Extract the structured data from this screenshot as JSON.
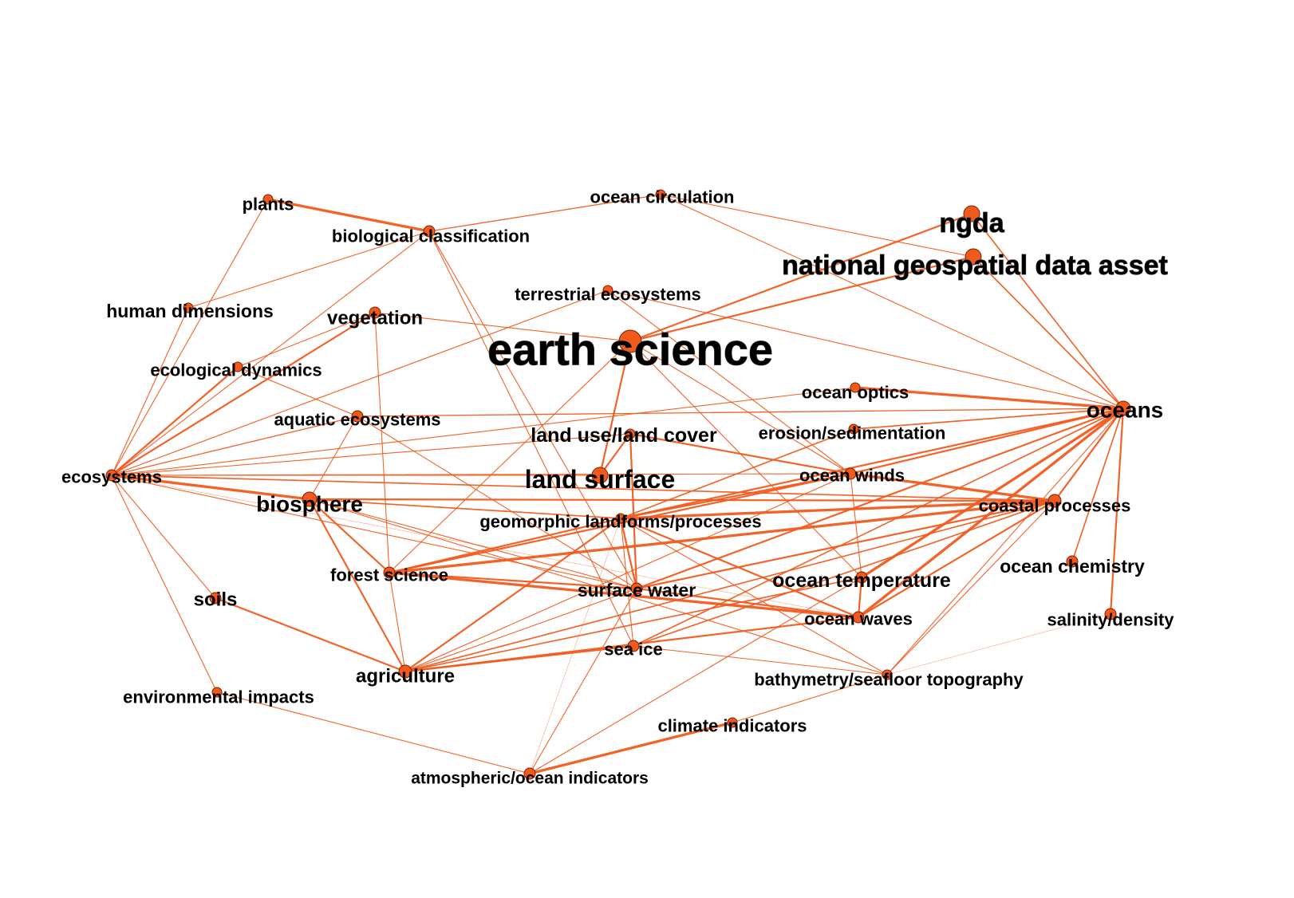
{
  "network": {
    "accent_color": "#f25a1c",
    "node_stroke_color": "#7a1e00",
    "nodes": [
      {
        "id": "earth_science",
        "label": "earth science"
      },
      {
        "id": "ngda",
        "label": "ngda"
      },
      {
        "id": "ngda_full",
        "label": "national geospatial data asset"
      },
      {
        "id": "oceans",
        "label": "oceans"
      },
      {
        "id": "land_surface",
        "label": "land surface"
      },
      {
        "id": "biosphere",
        "label": "biosphere"
      },
      {
        "id": "plants",
        "label": "plants"
      },
      {
        "id": "ocean_circulation",
        "label": "ocean circulation"
      },
      {
        "id": "bio_class",
        "label": "biological classification"
      },
      {
        "id": "terr_eco",
        "label": "terrestrial ecosystems"
      },
      {
        "id": "human_dim",
        "label": "human dimensions"
      },
      {
        "id": "vegetation",
        "label": "vegetation"
      },
      {
        "id": "eco_dyn",
        "label": "ecological dynamics"
      },
      {
        "id": "ocean_optics",
        "label": "ocean optics"
      },
      {
        "id": "aquatic_eco",
        "label": "aquatic ecosystems"
      },
      {
        "id": "land_use",
        "label": "land use/land cover"
      },
      {
        "id": "erosion",
        "label": "erosion/sedimentation"
      },
      {
        "id": "ecosystems",
        "label": "ecosystems"
      },
      {
        "id": "ocean_winds",
        "label": "ocean winds"
      },
      {
        "id": "coastal",
        "label": "coastal processes"
      },
      {
        "id": "geomorphic",
        "label": "geomorphic landforms/processes"
      },
      {
        "id": "forest",
        "label": "forest science"
      },
      {
        "id": "ocean_chem",
        "label": "ocean chemistry"
      },
      {
        "id": "surface_water",
        "label": "surface water"
      },
      {
        "id": "ocean_temp",
        "label": "ocean temperature"
      },
      {
        "id": "soils",
        "label": "soils"
      },
      {
        "id": "ocean_waves",
        "label": "ocean waves"
      },
      {
        "id": "salinity",
        "label": "salinity/density"
      },
      {
        "id": "sea_ice",
        "label": "sea ice"
      },
      {
        "id": "agriculture",
        "label": "agriculture"
      },
      {
        "id": "bathymetry",
        "label": "bathymetry/seafloor topography"
      },
      {
        "id": "env_impacts",
        "label": "environmental impacts"
      },
      {
        "id": "climate_ind",
        "label": "climate indicators"
      },
      {
        "id": "atm_ocean_ind",
        "label": "atmospheric/ocean indicators"
      }
    ],
    "edges": [
      [
        "plants",
        "bio_class",
        3
      ],
      [
        "plants",
        "ecosystems",
        1
      ],
      [
        "bio_class",
        "ocean_circulation",
        1.2
      ],
      [
        "bio_class",
        "ecosystems",
        1
      ],
      [
        "bio_class",
        "human_dim",
        1
      ],
      [
        "bio_class",
        "surface_water",
        1
      ],
      [
        "bio_class",
        "sea_ice",
        1
      ],
      [
        "ocean_circulation",
        "ngda_full",
        1
      ],
      [
        "ocean_circulation",
        "oceans",
        1
      ],
      [
        "ngda",
        "earth_science",
        2
      ],
      [
        "ngda_full",
        "earth_science",
        2
      ],
      [
        "ngda",
        "oceans",
        1.5
      ],
      [
        "ngda_full",
        "oceans",
        1.5
      ],
      [
        "earth_science",
        "land_surface",
        2
      ],
      [
        "earth_science",
        "vegetation",
        1
      ],
      [
        "earth_science",
        "ocean_temp",
        1
      ],
      [
        "earth_science",
        "forest",
        1
      ],
      [
        "earth_science",
        "ocean_winds",
        1
      ],
      [
        "terr_eco",
        "oceans",
        1
      ],
      [
        "terr_eco",
        "ecosystems",
        1
      ],
      [
        "terr_eco",
        "ocean_winds",
        1
      ],
      [
        "human_dim",
        "ecosystems",
        1
      ],
      [
        "vegetation",
        "ecosystems",
        2
      ],
      [
        "vegetation",
        "forest",
        1
      ],
      [
        "vegetation",
        "eco_dyn",
        1
      ],
      [
        "eco_dyn",
        "ecosystems",
        2
      ],
      [
        "aquatic_eco",
        "oceans",
        1.2
      ],
      [
        "aquatic_eco",
        "ecosystems",
        1.2
      ],
      [
        "aquatic_eco",
        "biosphere",
        1
      ],
      [
        "aquatic_eco",
        "surface_water",
        1
      ],
      [
        "aquatic_eco",
        "eco_dyn",
        1
      ],
      [
        "ocean_optics",
        "oceans",
        3
      ],
      [
        "ocean_optics",
        "ecosystems",
        1
      ],
      [
        "land_use",
        "surface_water",
        2
      ],
      [
        "land_use",
        "ocean_winds",
        2
      ],
      [
        "land_use",
        "land_surface",
        2
      ],
      [
        "land_use",
        "ecosystems",
        1
      ],
      [
        "erosion",
        "oceans",
        1.5
      ],
      [
        "erosion",
        "geomorphic",
        1.5
      ],
      [
        "ecosystems",
        "land_surface",
        1
      ],
      [
        "ecosystems",
        "biosphere",
        3
      ],
      [
        "ecosystems",
        "coastal",
        1.5
      ],
      [
        "ecosystems",
        "ocean_winds",
        1
      ],
      [
        "ecosystems",
        "soils",
        1
      ],
      [
        "ecosystems",
        "env_impacts",
        1
      ],
      [
        "ecosystems",
        "surface_water",
        1
      ],
      [
        "ecosystems",
        "ocean_waves",
        0.5
      ],
      [
        "biosphere",
        "agriculture",
        2
      ],
      [
        "biosphere",
        "forest",
        2
      ],
      [
        "biosphere",
        "coastal",
        2
      ],
      [
        "biosphere",
        "geomorphic",
        1.5
      ],
      [
        "biosphere",
        "surface_water",
        1
      ],
      [
        "ocean_winds",
        "oceans",
        2
      ],
      [
        "ocean_winds",
        "coastal",
        3
      ],
      [
        "ocean_winds",
        "forest",
        2
      ],
      [
        "ocean_winds",
        "geomorphic",
        2
      ],
      [
        "ocean_winds",
        "ocean_temp",
        1
      ],
      [
        "ocean_winds",
        "agriculture",
        1
      ],
      [
        "coastal",
        "oceans",
        2
      ],
      [
        "coastal",
        "geomorphic",
        3
      ],
      [
        "coastal",
        "forest",
        3
      ],
      [
        "coastal",
        "surface_water",
        2
      ],
      [
        "coastal",
        "ocean_waves",
        2
      ],
      [
        "coastal",
        "sea_ice",
        1.5
      ],
      [
        "coastal",
        "agriculture",
        1.5
      ],
      [
        "coastal",
        "bathymetry",
        1
      ],
      [
        "oceans",
        "ocean_chem",
        1.5
      ],
      [
        "oceans",
        "salinity",
        2
      ],
      [
        "oceans",
        "ocean_temp",
        3
      ],
      [
        "oceans",
        "ocean_waves",
        3
      ],
      [
        "oceans",
        "surface_water",
        2
      ],
      [
        "oceans",
        "geomorphic",
        2
      ],
      [
        "oceans",
        "sea_ice",
        1.5
      ],
      [
        "oceans",
        "bathymetry",
        1
      ],
      [
        "geomorphic",
        "surface_water",
        2
      ],
      [
        "geomorphic",
        "agriculture",
        2
      ],
      [
        "geomorphic",
        "ocean_waves",
        2
      ],
      [
        "geomorphic",
        "sea_ice",
        1
      ],
      [
        "geomorphic",
        "forest",
        2
      ],
      [
        "geomorphic",
        "atm_ocean_ind",
        0.5
      ],
      [
        "geomorphic",
        "bathymetry",
        1
      ],
      [
        "forest",
        "ocean_waves",
        3
      ],
      [
        "forest",
        "surface_water",
        2
      ],
      [
        "forest",
        "agriculture",
        1
      ],
      [
        "surface_water",
        "ocean_waves",
        2
      ],
      [
        "surface_water",
        "agriculture",
        1
      ],
      [
        "ocean_temp",
        "agriculture",
        1.5
      ],
      [
        "ocean_temp",
        "ocean_waves",
        2
      ],
      [
        "ocean_temp",
        "atm_ocean_ind",
        1
      ],
      [
        "ocean_waves",
        "agriculture",
        2
      ],
      [
        "soils",
        "agriculture",
        2
      ],
      [
        "sea_ice",
        "agriculture",
        2
      ],
      [
        "sea_ice",
        "bathymetry",
        1
      ],
      [
        "bathymetry",
        "climate_ind",
        1
      ],
      [
        "bathymetry",
        "salinity",
        0.5
      ],
      [
        "bathymetry",
        "biosphere",
        1
      ],
      [
        "env_impacts",
        "atm_ocean_ind",
        1
      ],
      [
        "climate_ind",
        "atm_ocean_ind",
        3
      ],
      [
        "atm_ocean_ind",
        "surface_water",
        1
      ]
    ]
  }
}
